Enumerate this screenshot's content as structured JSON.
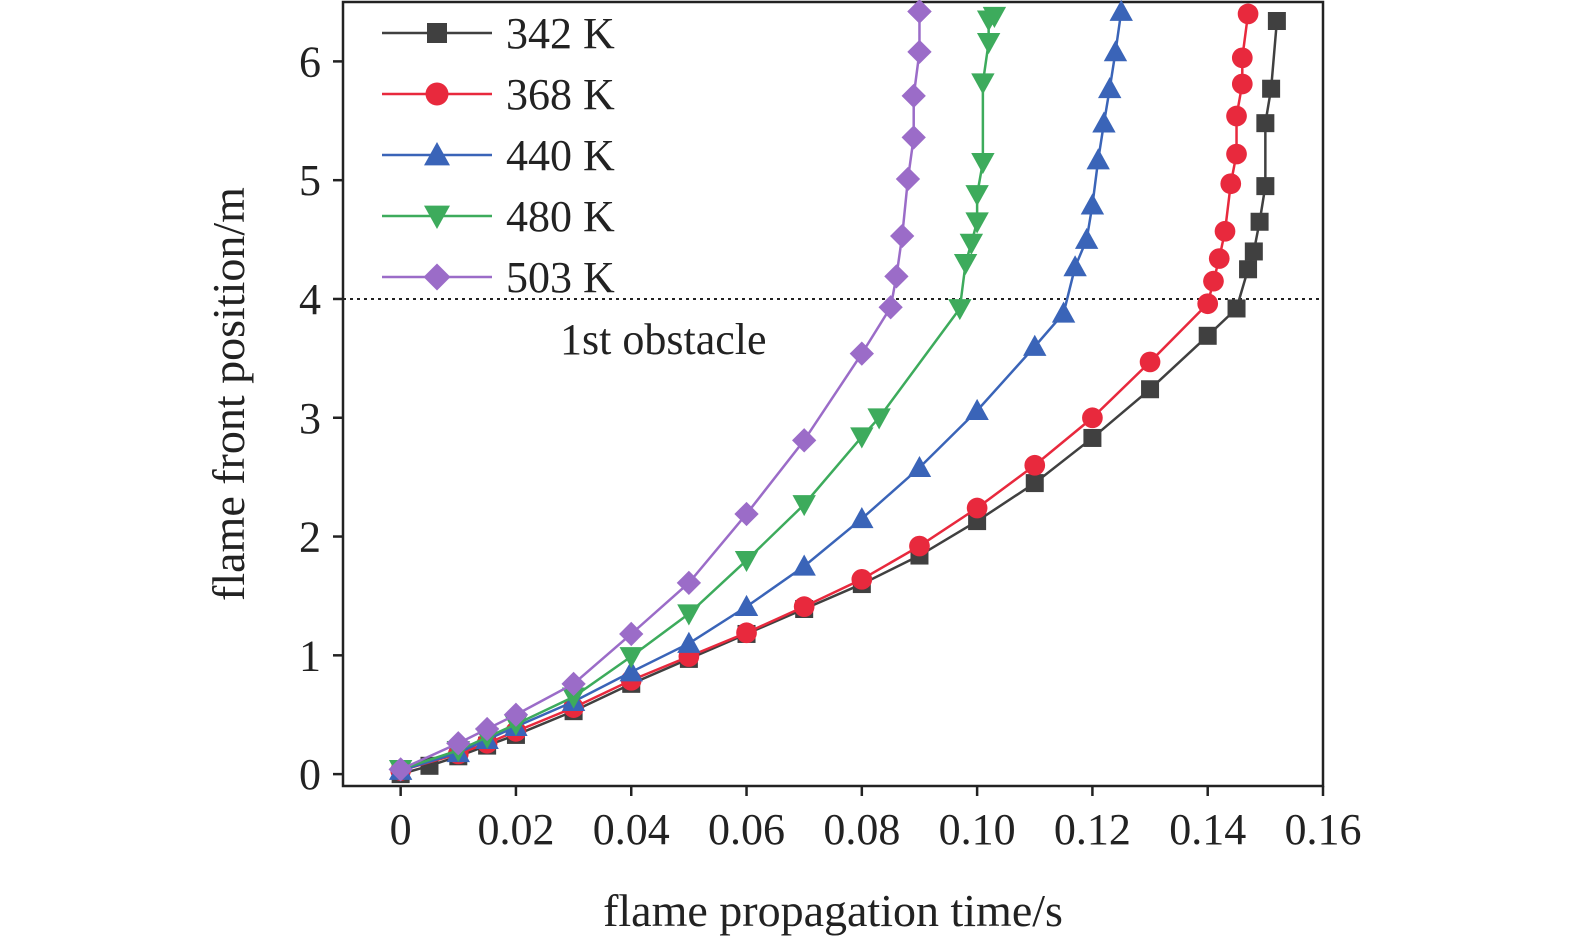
{
  "chart_data": {
    "type": "line",
    "xlabel": "flame propagation time/s",
    "ylabel": "flame front position/m",
    "xlim": [
      -0.01,
      0.16
    ],
    "ylim": [
      -0.1,
      6.5
    ],
    "xticks": [
      0,
      0.02,
      0.04,
      0.06,
      0.08,
      0.1,
      0.12,
      0.14,
      0.16
    ],
    "xtick_labels": [
      "0",
      "0.02",
      "0.04",
      "0.06",
      "0.08",
      "0.10",
      "0.12",
      "0.14",
      "0.16"
    ],
    "yticks": [
      0,
      1,
      2,
      3,
      4,
      5,
      6
    ],
    "ytick_labels": [
      "0",
      "1",
      "2",
      "3",
      "4",
      "5",
      "6"
    ],
    "grid": false,
    "legend_position": "top-left",
    "reference_line": {
      "y": 4,
      "style": "dotted",
      "label": "1st obstacle"
    },
    "series": [
      {
        "name": "342 K",
        "color": "#404040",
        "marker": "square",
        "x": [
          0,
          0.005,
          0.01,
          0.015,
          0.02,
          0.03,
          0.04,
          0.05,
          0.06,
          0.07,
          0.08,
          0.09,
          0.1,
          0.11,
          0.12,
          0.13,
          0.14,
          0.145,
          0.147,
          0.148,
          0.149,
          0.15,
          0.15,
          0.151,
          0.152
        ],
        "y": [
          0,
          0.07,
          0.15,
          0.24,
          0.33,
          0.53,
          0.76,
          0.97,
          1.18,
          1.39,
          1.6,
          1.84,
          2.13,
          2.45,
          2.83,
          3.24,
          3.69,
          3.92,
          4.25,
          4.4,
          4.65,
          4.95,
          5.48,
          5.77,
          6.34
        ]
      },
      {
        "name": "368 K",
        "color": "#e8293d",
        "marker": "circle",
        "x": [
          0,
          0.01,
          0.015,
          0.02,
          0.03,
          0.04,
          0.05,
          0.06,
          0.07,
          0.08,
          0.09,
          0.1,
          0.11,
          0.12,
          0.13,
          0.14,
          0.141,
          0.142,
          0.143,
          0.144,
          0.145,
          0.145,
          0.146,
          0.146,
          0.147
        ],
        "y": [
          0.03,
          0.17,
          0.26,
          0.36,
          0.56,
          0.79,
          0.99,
          1.19,
          1.41,
          1.64,
          1.92,
          2.24,
          2.6,
          3.0,
          3.47,
          3.96,
          4.15,
          4.34,
          4.57,
          4.97,
          5.22,
          5.54,
          5.81,
          6.03,
          6.4
        ]
      },
      {
        "name": "440 K",
        "color": "#3a64b8",
        "marker": "triangle-up",
        "x": [
          0,
          0.01,
          0.015,
          0.02,
          0.03,
          0.04,
          0.05,
          0.06,
          0.07,
          0.08,
          0.09,
          0.1,
          0.11,
          0.115,
          0.117,
          0.119,
          0.12,
          0.121,
          0.122,
          0.123,
          0.124,
          0.125
        ],
        "y": [
          0.03,
          0.18,
          0.29,
          0.4,
          0.61,
          0.86,
          1.1,
          1.41,
          1.75,
          2.15,
          2.58,
          3.06,
          3.6,
          3.88,
          4.27,
          4.5,
          4.79,
          5.17,
          5.48,
          5.77,
          6.08,
          6.42
        ]
      },
      {
        "name": "480 K",
        "color": "#3dab5c",
        "marker": "triangle-down",
        "x": [
          0,
          0.01,
          0.015,
          0.02,
          0.03,
          0.04,
          0.05,
          0.06,
          0.07,
          0.08,
          0.083,
          0.097,
          0.098,
          0.099,
          0.1,
          0.1,
          0.101,
          0.101,
          0.102,
          0.102,
          0.103
        ],
        "y": [
          0.04,
          0.2,
          0.31,
          0.42,
          0.65,
          0.99,
          1.35,
          1.8,
          2.27,
          2.84,
          3.0,
          3.92,
          4.3,
          4.47,
          4.65,
          4.88,
          5.15,
          5.82,
          6.16,
          6.35,
          6.38
        ]
      },
      {
        "name": "503 K",
        "color": "#9b6cc8",
        "marker": "diamond",
        "x": [
          0,
          0.01,
          0.015,
          0.02,
          0.03,
          0.04,
          0.05,
          0.06,
          0.07,
          0.08,
          0.085,
          0.086,
          0.087,
          0.088,
          0.089,
          0.089,
          0.09,
          0.09,
          0.09
        ],
        "y": [
          0.04,
          0.26,
          0.38,
          0.5,
          0.76,
          1.18,
          1.61,
          2.19,
          2.81,
          3.54,
          3.93,
          4.19,
          4.53,
          5.01,
          5.36,
          5.71,
          6.08,
          6.42,
          6.42
        ]
      }
    ]
  }
}
